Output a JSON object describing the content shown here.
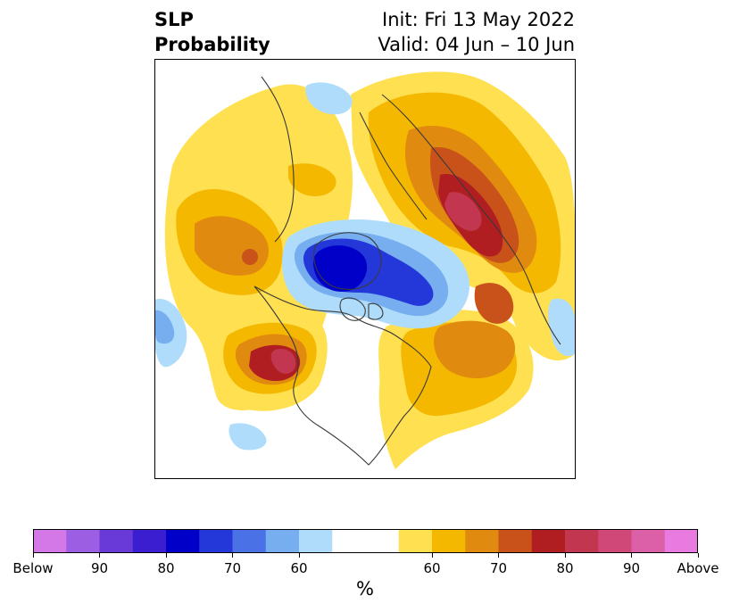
{
  "title": {
    "left_lines": [
      "SLP",
      "Probability"
    ],
    "right_lines": [
      "Init: Fri 13 May 2022",
      "Valid: 04 Jun – 10 Jun"
    ]
  },
  "colorbar": {
    "unit": "%",
    "colors": [
      "#d478e8",
      "#9c5ee3",
      "#6a3ad8",
      "#3a1ed0",
      "#0000c8",
      "#2438da",
      "#4a72e6",
      "#76aef0",
      "#aedcfa",
      "#ffffff",
      "#ffffff",
      "#ffe050",
      "#f5b800",
      "#e08a10",
      "#c8521a",
      "#b01e22",
      "#c23650",
      "#d04878",
      "#dc60a8",
      "#e87ae0"
    ],
    "ticks": [
      {
        "label": "Below",
        "index": 0
      },
      {
        "label": "90",
        "index": 2
      },
      {
        "label": "80",
        "index": 4
      },
      {
        "label": "70",
        "index": 6
      },
      {
        "label": "60",
        "index": 8
      },
      {
        "label": "60",
        "index": 12
      },
      {
        "label": "70",
        "index": 14
      },
      {
        "label": "80",
        "index": 16
      },
      {
        "label": "90",
        "index": 18
      },
      {
        "label": "Above",
        "index": 20
      }
    ]
  },
  "map": {
    "land_outline_color": "#3a3a3a",
    "below_colors": {
      "60": "#aedcfa",
      "70": "#76aef0",
      "80": "#2438da",
      "90": "#0000c8"
    },
    "above_colors": {
      "55": "#ffe050",
      "60": "#f5b800",
      "70": "#e08a10",
      "75": "#c8521a",
      "80": "#b01e22",
      "85": "#c23650"
    }
  }
}
